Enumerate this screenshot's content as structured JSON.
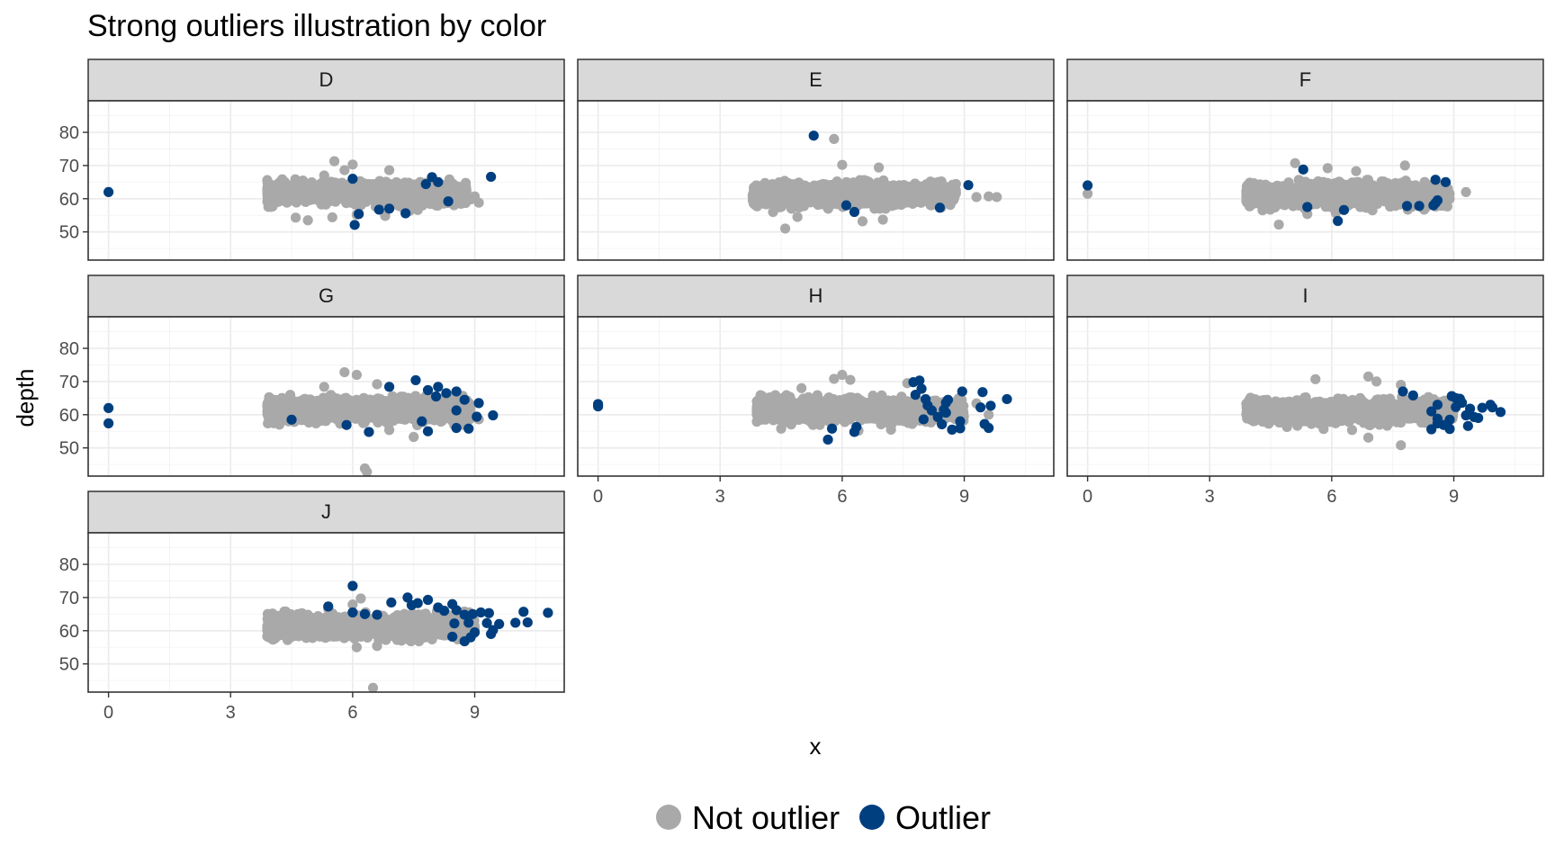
{
  "chart_data": {
    "type": "scatter",
    "title": "Strong outliers illustration by color",
    "xlabel": "x",
    "ylabel": "depth",
    "xlim": [
      -0.5,
      11.2
    ],
    "ylim": [
      41.5,
      89.5
    ],
    "x_ticks": [
      0,
      3,
      6,
      9
    ],
    "y_ticks": [
      50,
      60,
      70,
      80
    ],
    "grid": true,
    "legend_position": "bottom",
    "series": [
      {
        "name": "Not outlier",
        "color": "#a9a9a9"
      },
      {
        "name": "Outlier",
        "color": "#003f7f"
      }
    ],
    "panels": [
      {
        "label": "D",
        "bulk": {
          "x_range": [
            3.9,
            8.8
          ],
          "y_center": 61.7,
          "y_spread": 2.6
        },
        "not_outlier_points": [
          [
            5.55,
            71.3
          ],
          [
            6.0,
            70.3
          ],
          [
            5.8,
            68.6
          ],
          [
            6.9,
            68.6
          ],
          [
            5.3,
            67.0
          ],
          [
            4.6,
            54.3
          ],
          [
            4.9,
            53.5
          ],
          [
            5.5,
            54.4
          ],
          [
            6.1,
            55.2
          ],
          [
            7.4,
            56.3
          ],
          [
            9.0,
            60.7
          ],
          [
            9.1,
            58.8
          ],
          [
            8.9,
            59.8
          ],
          [
            7.6,
            56.6
          ],
          [
            6.8,
            54.8
          ]
        ],
        "outlier_points": [
          [
            0.0,
            62.0
          ],
          [
            6.0,
            66.0
          ],
          [
            7.8,
            64.4
          ],
          [
            7.95,
            66.5
          ],
          [
            8.1,
            65.0
          ],
          [
            9.4,
            66.6
          ],
          [
            8.35,
            59.2
          ],
          [
            6.15,
            55.4
          ],
          [
            6.65,
            56.7
          ],
          [
            6.9,
            57.0
          ],
          [
            7.3,
            55.6
          ],
          [
            6.05,
            52.1
          ]
        ]
      },
      {
        "label": "E",
        "bulk": {
          "x_range": [
            3.8,
            8.8
          ],
          "y_center": 61.3,
          "y_spread": 2.7
        },
        "not_outlier_points": [
          [
            5.8,
            78.0
          ],
          [
            6.0,
            70.2
          ],
          [
            4.6,
            51.0
          ],
          [
            4.9,
            54.5
          ],
          [
            6.9,
            69.4
          ],
          [
            6.5,
            53.2
          ],
          [
            7.0,
            53.7
          ],
          [
            9.6,
            60.7
          ],
          [
            9.3,
            60.5
          ],
          [
            9.8,
            60.5
          ],
          [
            4.3,
            56.0
          ],
          [
            7.4,
            58.4
          ]
        ],
        "outlier_points": [
          [
            5.3,
            79.0
          ],
          [
            9.1,
            64.1
          ],
          [
            6.1,
            58.0
          ],
          [
            6.3,
            56.0
          ],
          [
            8.4,
            57.3
          ]
        ]
      },
      {
        "label": "F",
        "bulk": {
          "x_range": [
            3.9,
            8.9
          ],
          "y_center": 61.2,
          "y_spread": 2.8
        },
        "not_outlier_points": [
          [
            0.0,
            61.5
          ],
          [
            5.1,
            70.7
          ],
          [
            5.9,
            69.2
          ],
          [
            6.6,
            68.3
          ],
          [
            7.8,
            70.0
          ],
          [
            9.3,
            62.0
          ],
          [
            4.7,
            52.2
          ],
          [
            5.4,
            55.4
          ],
          [
            6.1,
            55.7
          ],
          [
            7.0,
            56.5
          ],
          [
            8.8,
            57.8
          ],
          [
            4.3,
            56.5
          ]
        ],
        "outlier_points": [
          [
            0.0,
            64.0
          ],
          [
            5.3,
            68.8
          ],
          [
            8.55,
            65.7
          ],
          [
            8.8,
            65.0
          ],
          [
            5.4,
            57.5
          ],
          [
            6.3,
            56.6
          ],
          [
            6.15,
            53.3
          ],
          [
            7.85,
            57.8
          ],
          [
            8.15,
            57.8
          ],
          [
            8.5,
            58.0
          ],
          [
            8.55,
            58.7
          ],
          [
            8.6,
            59.5
          ]
        ]
      },
      {
        "label": "G",
        "bulk": {
          "x_range": [
            3.9,
            8.9
          ],
          "y_center": 61.5,
          "y_spread": 2.9
        },
        "not_outlier_points": [
          [
            5.8,
            72.8
          ],
          [
            6.1,
            72.0
          ],
          [
            6.3,
            43.8
          ],
          [
            6.35,
            42.8
          ],
          [
            7.5,
            53.3
          ],
          [
            9.1,
            58.6
          ],
          [
            4.2,
            57.0
          ],
          [
            5.1,
            57.4
          ],
          [
            6.9,
            55.4
          ],
          [
            6.6,
            69.2
          ],
          [
            5.3,
            68.4
          ],
          [
            8.7,
            57.0
          ]
        ],
        "outlier_points": [
          [
            0.0,
            62.0
          ],
          [
            0.0,
            57.4
          ],
          [
            4.5,
            58.5
          ],
          [
            5.85,
            56.9
          ],
          [
            6.4,
            54.8
          ],
          [
            7.55,
            70.4
          ],
          [
            6.9,
            68.4
          ],
          [
            7.85,
            67.4
          ],
          [
            8.05,
            65.5
          ],
          [
            8.1,
            68.4
          ],
          [
            8.3,
            66.5
          ],
          [
            8.55,
            67.0
          ],
          [
            8.75,
            64.5
          ],
          [
            9.1,
            63.5
          ],
          [
            8.55,
            61.3
          ],
          [
            9.05,
            59.4
          ],
          [
            9.45,
            59.8
          ],
          [
            7.7,
            58.0
          ],
          [
            7.85,
            55.0
          ],
          [
            8.55,
            56.0
          ],
          [
            8.85,
            55.8
          ]
        ]
      },
      {
        "label": "H",
        "bulk": {
          "x_range": [
            3.9,
            9.0
          ],
          "y_center": 61.4,
          "y_spread": 2.8
        },
        "not_outlier_points": [
          [
            6.0,
            72.0
          ],
          [
            6.2,
            70.5
          ],
          [
            5.8,
            70.8
          ],
          [
            4.5,
            55.8
          ],
          [
            6.4,
            55.2
          ],
          [
            7.6,
            69.5
          ],
          [
            9.3,
            63.4
          ],
          [
            5.0,
            68.0
          ],
          [
            8.9,
            57.6
          ],
          [
            7.2,
            55.5
          ],
          [
            9.6,
            60.0
          ]
        ],
        "outlier_points": [
          [
            0.0,
            63.2
          ],
          [
            0.0,
            62.5
          ],
          [
            5.65,
            52.5
          ],
          [
            5.75,
            55.8
          ],
          [
            6.3,
            54.8
          ],
          [
            6.35,
            56.3
          ],
          [
            7.75,
            69.8
          ],
          [
            7.9,
            70.3
          ],
          [
            7.95,
            67.8
          ],
          [
            7.8,
            66.0
          ],
          [
            8.05,
            64.7
          ],
          [
            8.1,
            62.8
          ],
          [
            8.2,
            61.3
          ],
          [
            8.35,
            59.3
          ],
          [
            8.5,
            61.5
          ],
          [
            8.55,
            63.6
          ],
          [
            8.6,
            64.5
          ],
          [
            8.55,
            60.6
          ],
          [
            8.45,
            57.1
          ],
          [
            8.7,
            55.5
          ],
          [
            8.95,
            67.0
          ],
          [
            9.45,
            66.8
          ],
          [
            10.05,
            64.7
          ],
          [
            9.4,
            62.2
          ],
          [
            9.65,
            62.7
          ],
          [
            8.9,
            58.0
          ],
          [
            9.5,
            57.2
          ],
          [
            8.9,
            55.9
          ],
          [
            9.6,
            56.0
          ],
          [
            8.0,
            58.6
          ]
        ]
      },
      {
        "label": "I",
        "bulk": {
          "x_range": [
            3.9,
            9.0
          ],
          "y_center": 61.0,
          "y_spread": 2.7
        },
        "not_outlier_points": [
          [
            5.6,
            70.7
          ],
          [
            6.9,
            71.5
          ],
          [
            7.1,
            70.0
          ],
          [
            7.7,
            69.0
          ],
          [
            7.7,
            50.8
          ],
          [
            6.9,
            53.1
          ],
          [
            4.9,
            56.3
          ],
          [
            5.8,
            55.7
          ],
          [
            6.5,
            55.4
          ],
          [
            8.2,
            64.0
          ],
          [
            4.2,
            63.3
          ]
        ],
        "outlier_points": [
          [
            7.75,
            67.0
          ],
          [
            8.0,
            65.8
          ],
          [
            8.95,
            65.6
          ],
          [
            9.05,
            65.0
          ],
          [
            9.15,
            64.8
          ],
          [
            9.2,
            63.6
          ],
          [
            9.05,
            62.3
          ],
          [
            8.6,
            63.0
          ],
          [
            8.45,
            61.0
          ],
          [
            9.4,
            61.8
          ],
          [
            9.7,
            62.1
          ],
          [
            9.9,
            63.0
          ],
          [
            10.15,
            60.8
          ],
          [
            9.95,
            62.2
          ],
          [
            9.5,
            59.3
          ],
          [
            9.3,
            59.8
          ],
          [
            8.6,
            58.8
          ],
          [
            8.75,
            56.9
          ],
          [
            8.6,
            57.4
          ],
          [
            8.45,
            55.6
          ],
          [
            8.9,
            58.5
          ],
          [
            8.9,
            55.7
          ],
          [
            9.35,
            56.6
          ],
          [
            9.6,
            59.0
          ]
        ]
      },
      {
        "label": "J",
        "bulk": {
          "x_range": [
            3.9,
            9.0
          ],
          "y_center": 61.3,
          "y_spread": 2.8
        },
        "not_outlier_points": [
          [
            6.5,
            42.8
          ],
          [
            6.2,
            69.7
          ],
          [
            6.0,
            67.9
          ],
          [
            6.1,
            55.0
          ],
          [
            6.6,
            55.4
          ],
          [
            4.4,
            57.2
          ],
          [
            7.2,
            57.0
          ],
          [
            8.6,
            57.5
          ],
          [
            5.4,
            66.6
          ],
          [
            4.9,
            64.8
          ]
        ],
        "outlier_points": [
          [
            6.0,
            73.5
          ],
          [
            5.4,
            67.3
          ],
          [
            6.0,
            65.5
          ],
          [
            6.3,
            65.0
          ],
          [
            6.6,
            64.8
          ],
          [
            6.95,
            68.5
          ],
          [
            7.35,
            70.0
          ],
          [
            7.45,
            67.7
          ],
          [
            7.85,
            69.3
          ],
          [
            7.6,
            68.3
          ],
          [
            8.1,
            67.0
          ],
          [
            8.25,
            66.0
          ],
          [
            8.45,
            68.0
          ],
          [
            8.55,
            66.2
          ],
          [
            8.75,
            64.8
          ],
          [
            8.95,
            65.0
          ],
          [
            9.15,
            65.5
          ],
          [
            9.35,
            65.3
          ],
          [
            8.5,
            62.2
          ],
          [
            8.85,
            62.4
          ],
          [
            9.3,
            62.3
          ],
          [
            9.6,
            62.0
          ],
          [
            10.0,
            62.4
          ],
          [
            10.3,
            62.5
          ],
          [
            10.2,
            65.7
          ],
          [
            10.8,
            65.4
          ],
          [
            8.45,
            58.2
          ],
          [
            8.75,
            56.8
          ],
          [
            8.9,
            58.0
          ],
          [
            9.0,
            59.5
          ],
          [
            9.4,
            59.0
          ],
          [
            9.45,
            60.2
          ]
        ]
      }
    ]
  }
}
